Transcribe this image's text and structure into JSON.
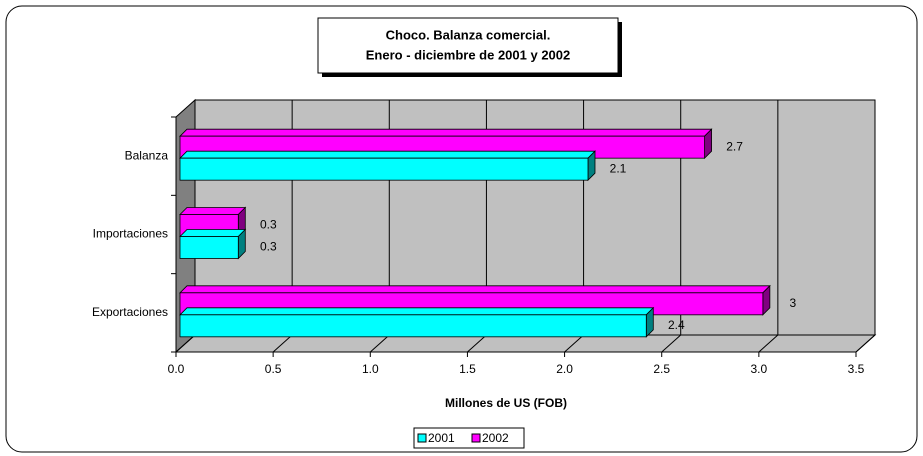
{
  "chart_data": {
    "type": "bar3d_horizontal",
    "title": [
      "Choco. Balanza comercial.",
      "Enero - diciembre de 2001 y 2002"
    ],
    "categories": [
      "Balanza",
      "Importaciones",
      "Exportaciones"
    ],
    "series": [
      {
        "name": "2001",
        "color": "#00ffff",
        "values": [
          2.1,
          0.3,
          2.4
        ]
      },
      {
        "name": "2002",
        "color": "#ff00ff",
        "values": [
          2.7,
          0.3,
          3.0
        ]
      }
    ],
    "xlabel": "Millones de US (FOB)",
    "xlim": [
      0,
      3.5
    ],
    "xticks": [
      {
        "value": 0,
        "label": "0.0"
      },
      0.5,
      {
        "value": 1,
        "label": "1.0"
      },
      1.5,
      {
        "value": 2,
        "label": "2.0"
      },
      2.5,
      {
        "value": 3,
        "label": "3.0"
      },
      3.5
    ],
    "grid": true,
    "legend": "bottom"
  }
}
